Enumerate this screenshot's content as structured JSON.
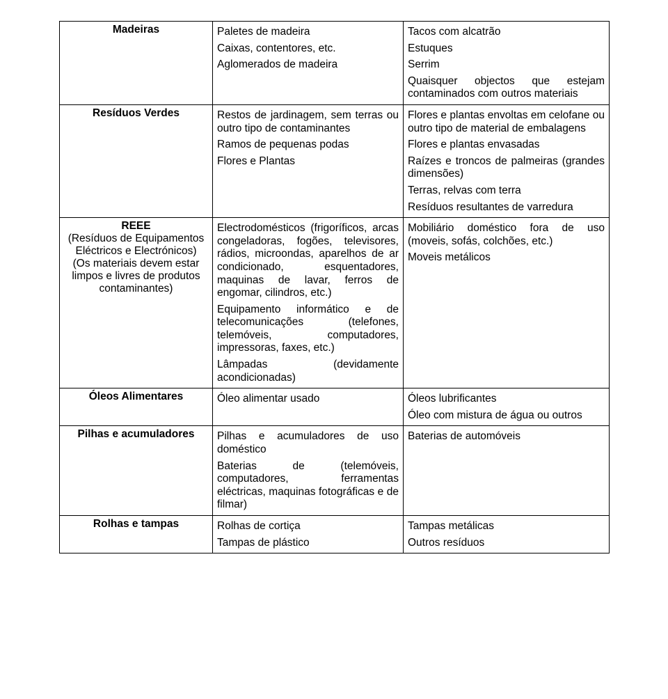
{
  "rows": [
    {
      "category_html": "<span class='bold'>Madeiras</span>",
      "accepted": [
        "Paletes de madeira",
        "Caixas, contentores, etc.",
        " Aglomerados de madeira"
      ],
      "rejected": [
        "Tacos com alcatrão",
        "Estuques",
        "Serrim",
        {
          "text": "Quaisquer objectos que estejam contaminados com outros materiais",
          "justify": true
        }
      ]
    },
    {
      "category_html": "<span class='bold'>Resíduos Verdes</span>",
      "accepted": [
        {
          "text": "Restos de jardinagem, sem terras ou outro tipo de contaminantes",
          "justify": true
        },
        "Ramos de pequenas podas",
        "Flores e Plantas"
      ],
      "rejected": [
        {
          "text": "Flores e plantas envoltas em celofane ou outro tipo de material de embalagens",
          "justify": true
        },
        "Flores e plantas envasadas",
        {
          "text": "Raízes e troncos de palmeiras (grandes dimensões)",
          "justify": true
        },
        "Terras, relvas com terra",
        "Resíduos resultantes de varredura"
      ]
    },
    {
      "category_html": "<div class='bold'>REEE</div><div class='sub'>(Resíduos de Equipamentos Eléctricos e Electrónicos)</div><div class='sub'>(Os materiais devem estar limpos e livres de produtos contaminantes)</div>",
      "accepted": [
        {
          "text": "Electrodomésticos (frigoríficos, arcas congeladoras, fogões, televisores, rádios, microondas, aparelhos de ar condicionado, esquentadores, maquinas de lavar, ferros de engomar, cilindros, etc.)",
          "justify": true
        },
        {
          "text": "Equipamento informático e de telecomunicações (telefones, telemóveis, computadores, impressoras, faxes, etc.)",
          "justify": true
        },
        {
          "text": "Lâmpadas (devidamente acondicionadas)",
          "justify": true
        }
      ],
      "rejected": [
        {
          "text": "Mobiliário doméstico fora de uso (moveis, sofás, colchões, etc.)",
          "justify": true
        },
        "Moveis metálicos"
      ]
    },
    {
      "category_html": "<span class='bold'>Óleos Alimentares</span>",
      "accepted": [
        "Óleo alimentar usado"
      ],
      "rejected": [
        "Óleos lubrificantes",
        "Óleo com mistura de água ou outros"
      ]
    },
    {
      "category_html": "<span class='bold'>Pilhas e acumuladores</span>",
      "accepted": [
        {
          "text": "Pilhas e acumuladores de uso doméstico",
          "justify": true
        },
        {
          "text": "Baterias de (telemóveis, computadores, ferramentas eléctricas, maquinas fotográficas e de filmar)",
          "justify": true
        }
      ],
      "rejected": [
        "Baterias de automóveis"
      ]
    },
    {
      "category_html": "<span class='bold'>Rolhas e tampas</span>",
      "accepted": [
        "Rolhas de cortiça",
        "Tampas de plástico"
      ],
      "rejected": [
        "Tampas metálicas",
        "Outros resíduos"
      ]
    }
  ]
}
